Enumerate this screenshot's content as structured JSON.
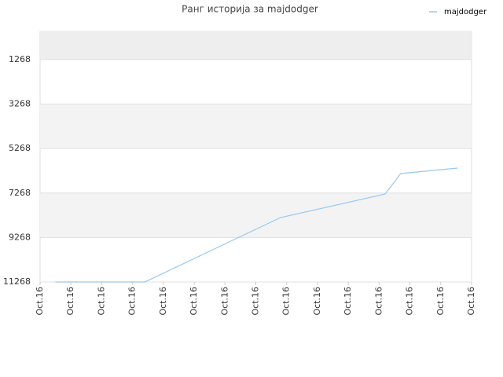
{
  "chart_data": {
    "type": "line",
    "title": "Ранг историја за majdodger",
    "x": [
      0.5,
      3.4,
      7.8,
      11.2,
      11.7,
      13.55
    ],
    "series": [
      {
        "name": "majdodger",
        "color": "#99c8ef",
        "values": [
          11268,
          11268,
          8372,
          7312,
          6393,
          6146
        ]
      }
    ],
    "xlim": [
      0,
      14
    ],
    "xticks": [
      {
        "value": 0,
        "label": "Oct.16"
      },
      {
        "value": 1,
        "label": "Oct.16"
      },
      {
        "value": 2,
        "label": "Oct.16"
      },
      {
        "value": 3,
        "label": "Oct.16"
      },
      {
        "value": 4,
        "label": "Oct.16"
      },
      {
        "value": 5,
        "label": "Oct.16"
      },
      {
        "value": 6,
        "label": "Oct.16"
      },
      {
        "value": 7,
        "label": "Oct.16"
      },
      {
        "value": 8,
        "label": "Oct.16"
      },
      {
        "value": 9,
        "label": "Oct.16"
      },
      {
        "value": 10,
        "label": "Oct.16"
      },
      {
        "value": 11,
        "label": "Oct.16"
      },
      {
        "value": 12,
        "label": "Oct.16"
      },
      {
        "value": 13,
        "label": "Oct.16"
      },
      {
        "value": 14,
        "label": "Oct.16"
      }
    ],
    "ylim": [
      11268,
      0
    ],
    "yticks": [
      1268,
      3268,
      5268,
      7268,
      9268,
      11268
    ],
    "grid": true,
    "legend": "top-right"
  }
}
